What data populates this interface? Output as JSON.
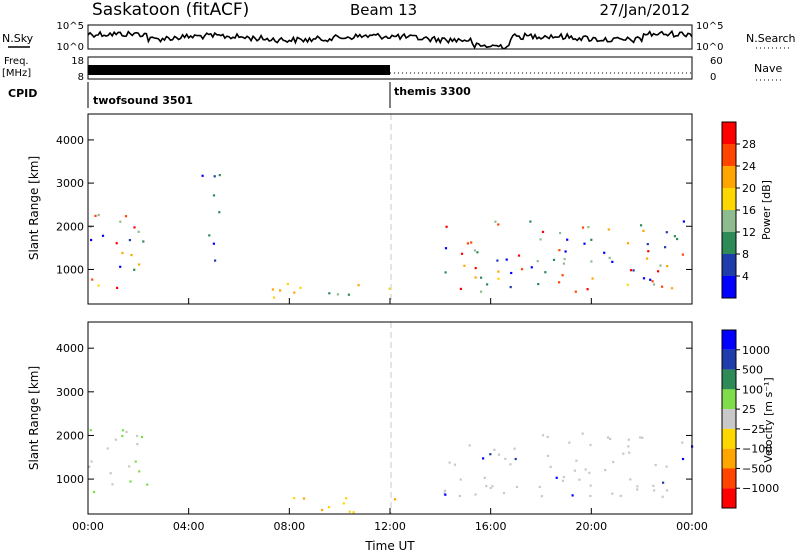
{
  "header": {
    "station": "Saskatoon (fitACF)",
    "beam": "Beam 13",
    "date": "27/Jan/2012"
  },
  "colors": {
    "sky_line": "#000000",
    "marker_line": "#c8c8c8"
  },
  "top_panels": {
    "nsky_label": "N.Sky",
    "nsky_ticks": [
      "10^5",
      "10^0"
    ],
    "nsearch_label": "N.Search",
    "nsearch_ticks": [
      "10^5",
      "10^0"
    ],
    "freq_label_1": "Freq.",
    "freq_label_2": "[MHz]",
    "freq_ticks": [
      "18",
      "8"
    ],
    "nave_label": "Nave",
    "nave_ticks": [
      "60",
      "0"
    ],
    "cpid_label": "CPID",
    "cpid_entries": [
      {
        "name": "twofsound 3501",
        "start_hour": 0
      },
      {
        "name": "themis 3300",
        "start_hour": 12
      }
    ],
    "freq_band_end_hour": 12
  },
  "chart_data": [
    {
      "type": "heatmap",
      "panel": "power",
      "xlabel": "",
      "ylabel": "Slant Range [km]",
      "colorbar_label": "Power [dB]",
      "xlim": [
        0,
        24
      ],
      "ylim": [
        200,
        4600
      ],
      "y_ticks": [
        1000,
        2000,
        3000,
        4000
      ],
      "colorbar_ticks": [
        "28",
        "24",
        "20",
        "16",
        "12",
        "8",
        "4"
      ],
      "colorbar_colors": [
        "#0000ff",
        "#1e3caa",
        "#2e8b57",
        "#8fbc8f",
        "#ffd700",
        "#ffa500",
        "#ff4500",
        "#ff0000"
      ],
      "scatter_regions": [
        {
          "t0": 0.0,
          "t1": 2.5,
          "r0": 500,
          "r1": 2300,
          "level": "mixed"
        },
        {
          "t0": 14.0,
          "t1": 24.0,
          "r0": 500,
          "r1": 2200,
          "level": "mixed"
        },
        {
          "t0": 4.5,
          "t1": 5.2,
          "r0": 700,
          "r1": 3300,
          "level": "low"
        },
        {
          "t0": 7.0,
          "t1": 12.5,
          "r0": 250,
          "r1": 700,
          "level": "mid"
        }
      ]
    },
    {
      "type": "heatmap",
      "panel": "velocity",
      "xlabel": "Time UT",
      "ylabel": "Slant Range [km]",
      "colorbar_label": "Velocity [m s⁻¹]",
      "xlim": [
        0,
        24
      ],
      "ylim": [
        200,
        4600
      ],
      "y_ticks": [
        1000,
        2000,
        3000,
        4000
      ],
      "x_ticks": [
        "00:00",
        "04:00",
        "08:00",
        "12:00",
        "16:00",
        "20:00",
        "00:00"
      ],
      "colorbar_ticks": [
        "1000",
        "500",
        "100",
        "25",
        "−25",
        "−100",
        "−500",
        "−1000"
      ],
      "colorbar_colors": [
        "#ff0000",
        "#ff4500",
        "#ffa500",
        "#ffd700",
        "#c8c8c8",
        "#7fdd4c",
        "#2e8b57",
        "#1e3caa",
        "#0000ff"
      ],
      "scatter_regions": [
        {
          "t0": 0.0,
          "t1": 2.5,
          "r0": 500,
          "r1": 2200,
          "level": "grey-green"
        },
        {
          "t0": 14.0,
          "t1": 24.0,
          "r0": 600,
          "r1": 2100,
          "level": "grey"
        },
        {
          "t0": 7.0,
          "t1": 12.5,
          "r0": 250,
          "r1": 600,
          "level": "orange"
        }
      ]
    }
  ]
}
